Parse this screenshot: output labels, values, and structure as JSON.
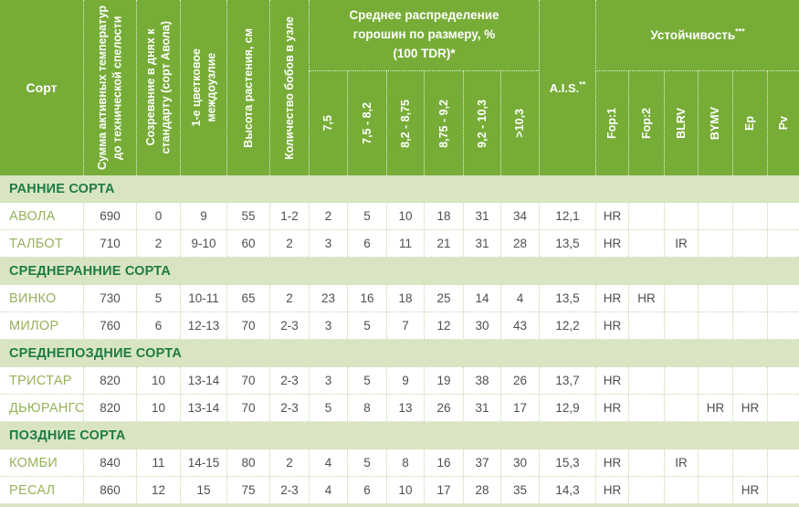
{
  "colors": {
    "header_bg": "#77ad37",
    "header_text": "#ffffff",
    "section_bg": "#d9e5c2",
    "section_text": "#1e7b46",
    "variety_text": "#95b25a",
    "value_text": "#4f4f4f",
    "body_line": "#c5d3a7"
  },
  "header": {
    "col_sort": "Сорт",
    "col_temp_sum": [
      "Сумма активных температур",
      "до технической спелости"
    ],
    "col_ripening": [
      "Созревание в днях к",
      "стандарту (сорт Авола)"
    ],
    "col_internode": [
      "1-е цветковое",
      "междоузлие"
    ],
    "col_height": "Высота растения, см",
    "col_pods": "Количество бобов в узле",
    "group_size": [
      "Среднее распределение",
      "горошин по размеру, %",
      "(100 TDR)*"
    ],
    "size_cols": [
      "7,5",
      "7,5 - 8,2",
      "8,2 - 8,75",
      "8,75 - 9,2",
      "9,2 - 10,3",
      ">10,3"
    ],
    "ais_label": "A.I.S.",
    "ais_sup": "**",
    "group_resistance": "Устойчивость",
    "group_resistance_sup": "***",
    "resistance_cols": [
      "Fop:1",
      "Fop:2",
      "BLRV",
      "BYMV",
      "Ep",
      "Pv"
    ]
  },
  "sections": [
    {
      "title": "РАННИЕ СОРТА",
      "rows": [
        {
          "name": "АВОЛА",
          "values": [
            "690",
            "0",
            "9",
            "55",
            "1-2",
            "2",
            "5",
            "10",
            "18",
            "31",
            "34",
            "12,1",
            "HR",
            "",
            "",
            "",
            "",
            ""
          ]
        },
        {
          "name": "ТАЛБОТ",
          "values": [
            "710",
            "2",
            "9-10",
            "60",
            "2",
            "3",
            "6",
            "11",
            "21",
            "31",
            "28",
            "13,5",
            "HR",
            "",
            "IR",
            "",
            "",
            ""
          ]
        }
      ]
    },
    {
      "title": "СРЕДНЕРАННИЕ СОРТА",
      "rows": [
        {
          "name": "ВИНКО",
          "values": [
            "730",
            "5",
            "10-11",
            "65",
            "2",
            "23",
            "16",
            "18",
            "25",
            "14",
            "4",
            "13,5",
            "HR",
            "HR",
            "",
            "",
            "",
            ""
          ]
        },
        {
          "name": "МИЛОР",
          "values": [
            "760",
            "6",
            "12-13",
            "70",
            "2-3",
            "3",
            "5",
            "7",
            "12",
            "30",
            "43",
            "12,2",
            "HR",
            "",
            "",
            "",
            "",
            ""
          ]
        }
      ]
    },
    {
      "title": "СРЕДНЕПОЗДНИЕ СОРТА",
      "rows": [
        {
          "name": "ТРИСТАР",
          "values": [
            "820",
            "10",
            "13-14",
            "70",
            "2-3",
            "3",
            "5",
            "9",
            "19",
            "38",
            "26",
            "13,7",
            "HR",
            "",
            "",
            "",
            "",
            ""
          ]
        },
        {
          "name": "ДЬЮРАНГО",
          "values": [
            "820",
            "10",
            "13-14",
            "70",
            "2-3",
            "5",
            "8",
            "13",
            "26",
            "31",
            "17",
            "12,9",
            "HR",
            "",
            "",
            "HR",
            "HR",
            ""
          ]
        }
      ]
    },
    {
      "title": "ПОЗДНИЕ СОРТА",
      "rows": [
        {
          "name": "КОМБИ",
          "values": [
            "840",
            "11",
            "14-15",
            "80",
            "2",
            "4",
            "5",
            "8",
            "16",
            "37",
            "30",
            "15,3",
            "HR",
            "",
            "IR",
            "",
            "",
            ""
          ]
        },
        {
          "name": "РЕСАЛ",
          "values": [
            "860",
            "12",
            "15",
            "75",
            "2-3",
            "4",
            "6",
            "10",
            "17",
            "28",
            "35",
            "14,3",
            "HR",
            "",
            "",
            "",
            "HR",
            ""
          ]
        }
      ]
    }
  ]
}
